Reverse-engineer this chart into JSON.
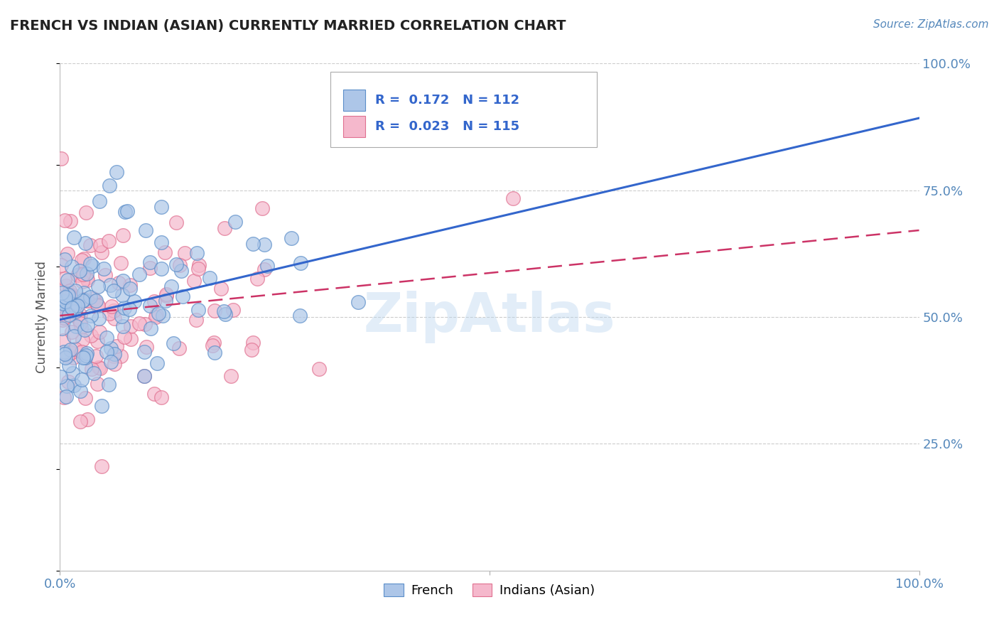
{
  "title": "FRENCH VS INDIAN (ASIAN) CURRENTLY MARRIED CORRELATION CHART",
  "source_text": "Source: ZipAtlas.com",
  "ylabel": "Currently Married",
  "xlim": [
    0,
    1
  ],
  "ylim": [
    0,
    1
  ],
  "french_fill_color": "#adc6e8",
  "french_edge_color": "#5b8ec9",
  "indian_fill_color": "#f5b8cc",
  "indian_edge_color": "#e07090",
  "french_line_color": "#3366cc",
  "indian_line_color": "#cc3366",
  "R_french": 0.172,
  "N_french": 112,
  "R_indian": 0.023,
  "N_indian": 115,
  "watermark": "ZipAtlas",
  "background_color": "#ffffff",
  "grid_color": "#cccccc",
  "title_color": "#222222",
  "source_color": "#5588bb",
  "tick_color": "#5588bb",
  "ylabel_color": "#555555"
}
